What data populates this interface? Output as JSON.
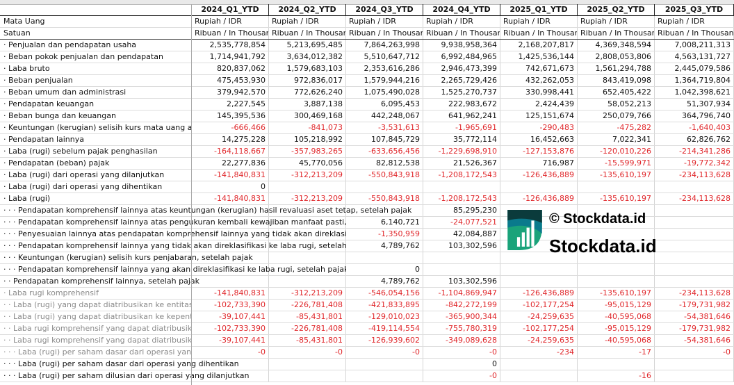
{
  "columns": [
    "2024_Q1_YTD",
    "2024_Q2_YTD",
    "2024_Q3_YTD",
    "2024_Q4_YTD",
    "2025_Q1_YTD",
    "2025_Q2_YTD",
    "2025_Q3_YTD"
  ],
  "currency_row": {
    "label": "Mata Uang",
    "value": "Rupiah / IDR"
  },
  "unit_row": {
    "label": "Satuan",
    "value": "Ribuan / In Thousands"
  },
  "rows": [
    {
      "label": "· Penjualan dan pendapatan usaha",
      "values": [
        "2,535,778,854",
        "5,213,695,485",
        "7,864,263,998",
        "9,938,958,364",
        "2,168,207,817",
        "4,369,348,594",
        "7,008,211,313"
      ]
    },
    {
      "label": "· Beban pokok penjualan dan pendapatan",
      "values": [
        "1,714,941,792",
        "3,634,012,382",
        "5,510,647,712",
        "6,992,484,965",
        "1,425,536,144",
        "2,808,053,806",
        "4,563,131,727"
      ]
    },
    {
      "label": "· Laba bruto",
      "values": [
        "820,837,062",
        "1,579,683,103",
        "2,353,616,286",
        "2,946,473,399",
        "742,671,673",
        "1,561,294,788",
        "2,445,079,586"
      ]
    },
    {
      "label": "· Beban penjualan",
      "values": [
        "475,453,930",
        "972,836,017",
        "1,579,944,216",
        "2,265,729,426",
        "432,262,053",
        "843,419,098",
        "1,364,719,804"
      ]
    },
    {
      "label": "· Beban umum dan administrasi",
      "values": [
        "379,942,570",
        "772,626,240",
        "1,075,490,028",
        "1,525,270,737",
        "330,998,441",
        "652,405,422",
        "1,042,398,621"
      ]
    },
    {
      "label": "· Pendapatan keuangan",
      "values": [
        "2,227,545",
        "3,887,138",
        "6,095,453",
        "222,983,672",
        "2,424,439",
        "58,052,213",
        "51,307,934"
      ]
    },
    {
      "label": "· Beban bunga dan keuangan",
      "values": [
        "145,395,536",
        "300,469,168",
        "442,248,067",
        "641,962,241",
        "125,151,674",
        "250,079,766",
        "364,796,740"
      ]
    },
    {
      "label": "· Keuntungan (kerugian) selisih kurs mata uang asing",
      "values": [
        "-666,466",
        "-841,073",
        "-3,531,613",
        "-1,965,691",
        "-290,483",
        "-475,282",
        "-1,640,403"
      ]
    },
    {
      "label": "· Pendapatan lainnya",
      "values": [
        "14,275,228",
        "105,218,992",
        "107,845,729",
        "35,772,114",
        "16,452,663",
        "7,022,341",
        "62,826,762"
      ]
    },
    {
      "label": "· Laba (rugi) sebelum pajak penghasilan",
      "values": [
        "-164,118,667",
        "-357,983,265",
        "-633,656,456",
        "-1,229,698,910",
        "-127,153,876",
        "-120,010,226",
        "-214,341,286"
      ]
    },
    {
      "label": "· Pendapatan (beban) pajak",
      "values": [
        "22,277,836",
        "45,770,056",
        "82,812,538",
        "21,526,367",
        "716,987",
        "-15,599,971",
        "-19,772,342"
      ]
    },
    {
      "label": "· Laba (rugi) dari operasi yang dilanjutkan",
      "values": [
        "-141,840,831",
        "-312,213,209",
        "-550,843,918",
        "-1,208,172,543",
        "-126,436,889",
        "-135,610,197",
        "-234,113,628"
      ]
    },
    {
      "label": "· Laba (rugi) dari operasi yang dihentikan",
      "values": [
        "0",
        null,
        null,
        null,
        null,
        null,
        null
      ]
    },
    {
      "label": "· Laba (rugi)",
      "values": [
        "-141,840,831",
        "-312,213,209",
        "-550,843,918",
        "-1,208,172,543",
        "-126,436,889",
        "-135,610,197",
        "-234,113,628"
      ]
    },
    {
      "label": "· · · Pendapatan komprehensif lainnya atas keuntungan (kerugian) hasil revaluasi aset tetap, setelah pajak",
      "values": [
        null,
        null,
        null,
        "85,295,230",
        null,
        null,
        null
      ]
    },
    {
      "label": "· · · Pendapatan komprehensif lainnya atas pengukuran kembali kewajiban manfaat pasti, setelah pajak",
      "values": [
        null,
        null,
        "6,140,721",
        "-24,077,521",
        null,
        null,
        null
      ]
    },
    {
      "label": "· · · Penyesuaian lainnya atas pendapatan komprehensif lainnya yang tidak akan direklasifikasi ke laba rugi",
      "values": [
        null,
        null,
        "-1,350,959",
        "42,084,887",
        null,
        null,
        null
      ]
    },
    {
      "label": "· · · Pendapatan komprehensif lainnya yang tidak akan direklasifikasi ke laba rugi, setelah pajak",
      "values": [
        null,
        null,
        "4,789,762",
        "103,302,596",
        null,
        null,
        null
      ]
    },
    {
      "label": "· · · Keuntungan (kerugian) selisih kurs penjabaran, setelah pajak",
      "values": [
        null,
        null,
        null,
        null,
        null,
        null,
        null
      ]
    },
    {
      "label": "· · · Pendapatan komprehensif lainnya yang akan direklasifikasi ke laba rugi, setelah pajak",
      "values": [
        null,
        null,
        "0",
        null,
        null,
        null,
        null
      ]
    },
    {
      "label": "· · Pendapatan komprehensif lainnya, setelah pajak",
      "values": [
        null,
        null,
        "4,789,762",
        "103,302,596",
        null,
        null,
        null
      ]
    },
    {
      "label": "· Laba rugi komprehensif",
      "grey": true,
      "values": [
        "-141,840,831",
        "-312,213,209",
        "-546,054,156",
        "-1,104,869,947",
        "-126,436,889",
        "-135,610,197",
        "-234,113,628"
      ]
    },
    {
      "label": "· · Laba (rugi) yang dapat diatribusikan ke entitas induk",
      "grey": true,
      "values": [
        "-102,733,390",
        "-226,781,408",
        "-421,833,895",
        "-842,272,199",
        "-102,177,254",
        "-95,015,129",
        "-179,731,982"
      ]
    },
    {
      "label": "· · Laba (rugi) yang dapat diatribusikan ke kepentingan non-pengendali",
      "grey": true,
      "values": [
        "-39,107,441",
        "-85,431,801",
        "-129,010,023",
        "-365,900,344",
        "-24,259,635",
        "-40,595,068",
        "-54,381,646"
      ]
    },
    {
      "label": "· · Laba rugi komprehensif yang dapat diatribusikan ke entitas induk",
      "grey": true,
      "values": [
        "-102,733,390",
        "-226,781,408",
        "-419,114,554",
        "-755,780,319",
        "-102,177,254",
        "-95,015,129",
        "-179,731,982"
      ]
    },
    {
      "label": "· · Laba rugi komprehensif yang dapat diatribusikan ke kepentingan non-pengendali",
      "grey": true,
      "values": [
        "-39,107,441",
        "-85,431,801",
        "-126,939,602",
        "-349,089,628",
        "-24,259,635",
        "-40,595,068",
        "-54,381,646"
      ]
    },
    {
      "label": "· · · Laba (rugi) per saham dasar dari operasi yang dilanjutkan",
      "grey": true,
      "values": [
        "-0",
        "-0",
        "-0",
        "-0",
        "-234",
        "-17",
        "-0"
      ]
    },
    {
      "label": "· · · Laba (rugi) per saham dasar dari operasi yang dihentikan",
      "values": [
        null,
        null,
        null,
        "0",
        null,
        null,
        null
      ]
    },
    {
      "label": "· · · Laba (rugi) per saham dilusian dari operasi yang dilanjutkan",
      "values": [
        null,
        null,
        null,
        "-0",
        null,
        "-16",
        null
      ]
    }
  ],
  "watermark": {
    "small": "© Stockdata.id",
    "large": "Stockdata.id"
  },
  "colors": {
    "negative": "#e0262a",
    "logo_dark": "#0b3b3c",
    "logo_mid": "#0a7a8c",
    "logo_green": "#1aa37a"
  }
}
